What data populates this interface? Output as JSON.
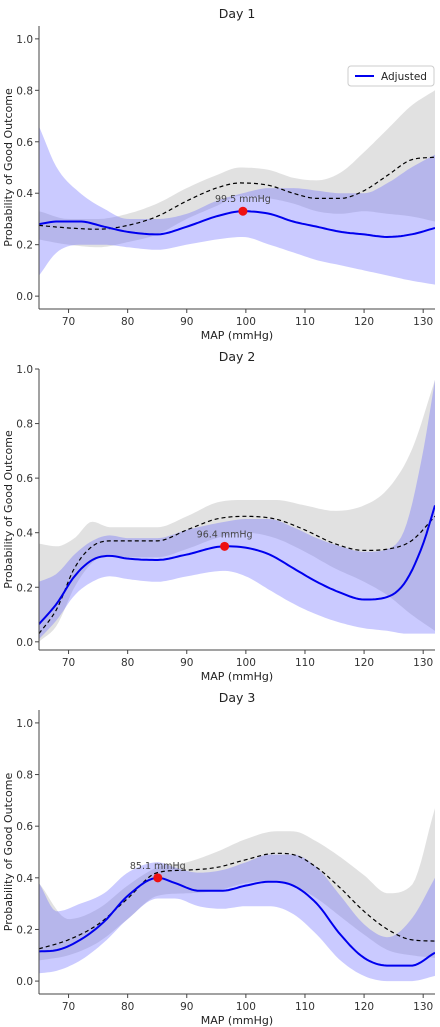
{
  "chart_data": [
    {
      "type": "line",
      "title": "Day 1",
      "xlabel": "MAP (mmHg)",
      "ylabel": "Probability of Good Outcome",
      "xlim": [
        65,
        132
      ],
      "ylim": [
        -0.05,
        1.05
      ],
      "xticks": [
        70,
        80,
        90,
        100,
        110,
        120,
        130
      ],
      "yticks": [
        0.0,
        0.2,
        0.4,
        0.6,
        0.8,
        1.0
      ],
      "legend": {
        "position": "top-right",
        "entries": [
          "Adjusted"
        ]
      },
      "series": [
        {
          "name": "Adjusted",
          "style": "solid",
          "color": "#0000ee",
          "x": [
            65,
            68,
            72,
            76,
            80,
            85,
            90,
            95,
            99.5,
            104,
            108,
            112,
            116,
            120,
            124,
            128,
            132
          ],
          "y": [
            0.28,
            0.29,
            0.29,
            0.27,
            0.25,
            0.24,
            0.27,
            0.31,
            0.33,
            0.32,
            0.29,
            0.27,
            0.25,
            0.24,
            0.23,
            0.24,
            0.265
          ],
          "lower": [
            0.08,
            0.17,
            0.2,
            0.2,
            0.19,
            0.18,
            0.2,
            0.22,
            0.23,
            0.2,
            0.17,
            0.14,
            0.12,
            0.1,
            0.08,
            0.06,
            0.045
          ],
          "upper": [
            0.66,
            0.5,
            0.4,
            0.34,
            0.3,
            0.3,
            0.32,
            0.37,
            0.4,
            0.42,
            0.42,
            0.41,
            0.4,
            0.4,
            0.44,
            0.5,
            0.55
          ]
        },
        {
          "style": "dashed",
          "color": "#000000",
          "x": [
            65,
            70,
            75,
            80,
            85,
            90,
            95,
            99,
            104,
            108,
            112,
            116,
            120,
            124,
            128,
            132
          ],
          "y": [
            0.275,
            0.265,
            0.26,
            0.275,
            0.31,
            0.37,
            0.42,
            0.44,
            0.43,
            0.4,
            0.38,
            0.38,
            0.41,
            0.47,
            0.53,
            0.54
          ],
          "lower": [
            0.22,
            0.2,
            0.19,
            0.21,
            0.24,
            0.3,
            0.35,
            0.39,
            0.38,
            0.36,
            0.33,
            0.32,
            0.33,
            0.32,
            0.31,
            0.29
          ],
          "upper": [
            0.33,
            0.3,
            0.3,
            0.32,
            0.36,
            0.42,
            0.47,
            0.5,
            0.49,
            0.46,
            0.45,
            0.48,
            0.56,
            0.65,
            0.74,
            0.8
          ]
        }
      ],
      "marker": {
        "x": 99.5,
        "y": 0.33,
        "label": "99.5 mmHg",
        "color": "#ee1111"
      }
    },
    {
      "type": "line",
      "title": "Day 2",
      "xlabel": "MAP (mmHg)",
      "ylabel": "Probability of Good Outcome",
      "xlim": [
        65,
        132
      ],
      "ylim": [
        -0.03,
        1.0
      ],
      "xticks": [
        70,
        80,
        90,
        100,
        110,
        120,
        130
      ],
      "yticks": [
        0.0,
        0.2,
        0.4,
        0.6,
        0.8,
        1.0
      ],
      "series": [
        {
          "name": "Adjusted",
          "style": "solid",
          "color": "#0000ee",
          "x": [
            65,
            68,
            71,
            74,
            77,
            80,
            85,
            90,
            96.4,
            100,
            104,
            108,
            112,
            116,
            120,
            124,
            127,
            130,
            132
          ],
          "y": [
            0.065,
            0.14,
            0.24,
            0.3,
            0.315,
            0.305,
            0.3,
            0.32,
            0.35,
            0.345,
            0.32,
            0.27,
            0.22,
            0.18,
            0.155,
            0.165,
            0.22,
            0.36,
            0.5
          ],
          "lower": [
            0.01,
            0.08,
            0.17,
            0.22,
            0.24,
            0.23,
            0.22,
            0.24,
            0.26,
            0.24,
            0.19,
            0.14,
            0.1,
            0.07,
            0.05,
            0.04,
            0.03,
            0.03,
            0.03
          ],
          "upper": [
            0.22,
            0.25,
            0.32,
            0.37,
            0.39,
            0.38,
            0.38,
            0.41,
            0.44,
            0.45,
            0.45,
            0.42,
            0.38,
            0.35,
            0.33,
            0.34,
            0.42,
            0.7,
            0.96
          ]
        },
        {
          "style": "dashed",
          "color": "#000000",
          "x": [
            65,
            68,
            71,
            74,
            77,
            80,
            85,
            90,
            95,
            100,
            105,
            110,
            115,
            120,
            124,
            128,
            132
          ],
          "y": [
            0.03,
            0.12,
            0.27,
            0.35,
            0.37,
            0.37,
            0.37,
            0.41,
            0.45,
            0.46,
            0.45,
            0.41,
            0.36,
            0.335,
            0.34,
            0.37,
            0.46
          ],
          "lower": [
            0.0,
            0.06,
            0.2,
            0.29,
            0.32,
            0.31,
            0.31,
            0.34,
            0.38,
            0.4,
            0.38,
            0.33,
            0.27,
            0.22,
            0.17,
            0.1,
            0.04
          ],
          "upper": [
            0.36,
            0.35,
            0.38,
            0.44,
            0.42,
            0.42,
            0.42,
            0.46,
            0.51,
            0.52,
            0.52,
            0.5,
            0.48,
            0.5,
            0.56,
            0.7,
            0.96
          ]
        }
      ],
      "marker": {
        "x": 96.4,
        "y": 0.35,
        "label": "96.4 mmHg",
        "color": "#ee1111"
      }
    },
    {
      "type": "line",
      "title": "Day 3",
      "xlabel": "MAP (mmHg)",
      "ylabel": "Probability of Good Outcome",
      "xlim": [
        65,
        132
      ],
      "ylim": [
        -0.05,
        1.05
      ],
      "xticks": [
        70,
        80,
        90,
        100,
        110,
        120,
        130
      ],
      "yticks": [
        0.0,
        0.2,
        0.4,
        0.6,
        0.8,
        1.0
      ],
      "series": [
        {
          "name": "Adjusted",
          "style": "solid",
          "color": "#0000ee",
          "x": [
            65,
            68,
            72,
            76,
            80,
            85.1,
            88,
            92,
            96,
            100,
            104,
            108,
            112,
            116,
            120,
            124,
            128,
            132
          ],
          "y": [
            0.115,
            0.12,
            0.16,
            0.23,
            0.33,
            0.4,
            0.38,
            0.35,
            0.35,
            0.37,
            0.385,
            0.37,
            0.3,
            0.18,
            0.09,
            0.06,
            0.06,
            0.11
          ],
          "lower": [
            0.03,
            0.04,
            0.08,
            0.15,
            0.24,
            0.32,
            0.32,
            0.29,
            0.28,
            0.29,
            0.29,
            0.26,
            0.18,
            0.08,
            0.02,
            0.0,
            0.0,
            0.02
          ],
          "upper": [
            0.38,
            0.27,
            0.3,
            0.34,
            0.42,
            0.46,
            0.44,
            0.42,
            0.43,
            0.46,
            0.49,
            0.49,
            0.44,
            0.33,
            0.22,
            0.17,
            0.24,
            0.4
          ]
        },
        {
          "style": "dashed",
          "color": "#000000",
          "x": [
            65,
            70,
            75,
            80,
            85,
            90,
            95,
            100,
            105,
            108,
            112,
            116,
            120,
            124,
            128,
            132
          ],
          "y": [
            0.125,
            0.16,
            0.22,
            0.32,
            0.42,
            0.43,
            0.44,
            0.47,
            0.495,
            0.49,
            0.44,
            0.36,
            0.27,
            0.2,
            0.16,
            0.155
          ],
          "lower": [
            0.08,
            0.1,
            0.15,
            0.24,
            0.33,
            0.34,
            0.35,
            0.38,
            0.39,
            0.37,
            0.32,
            0.25,
            0.18,
            0.12,
            0.1,
            0.09
          ],
          "upper": [
            0.38,
            0.24,
            0.28,
            0.37,
            0.44,
            0.46,
            0.5,
            0.55,
            0.58,
            0.58,
            0.54,
            0.48,
            0.41,
            0.34,
            0.37,
            0.67
          ]
        }
      ],
      "marker": {
        "x": 85.1,
        "y": 0.4,
        "label": "85.1 mmHg",
        "color": "#ee1111"
      }
    }
  ]
}
